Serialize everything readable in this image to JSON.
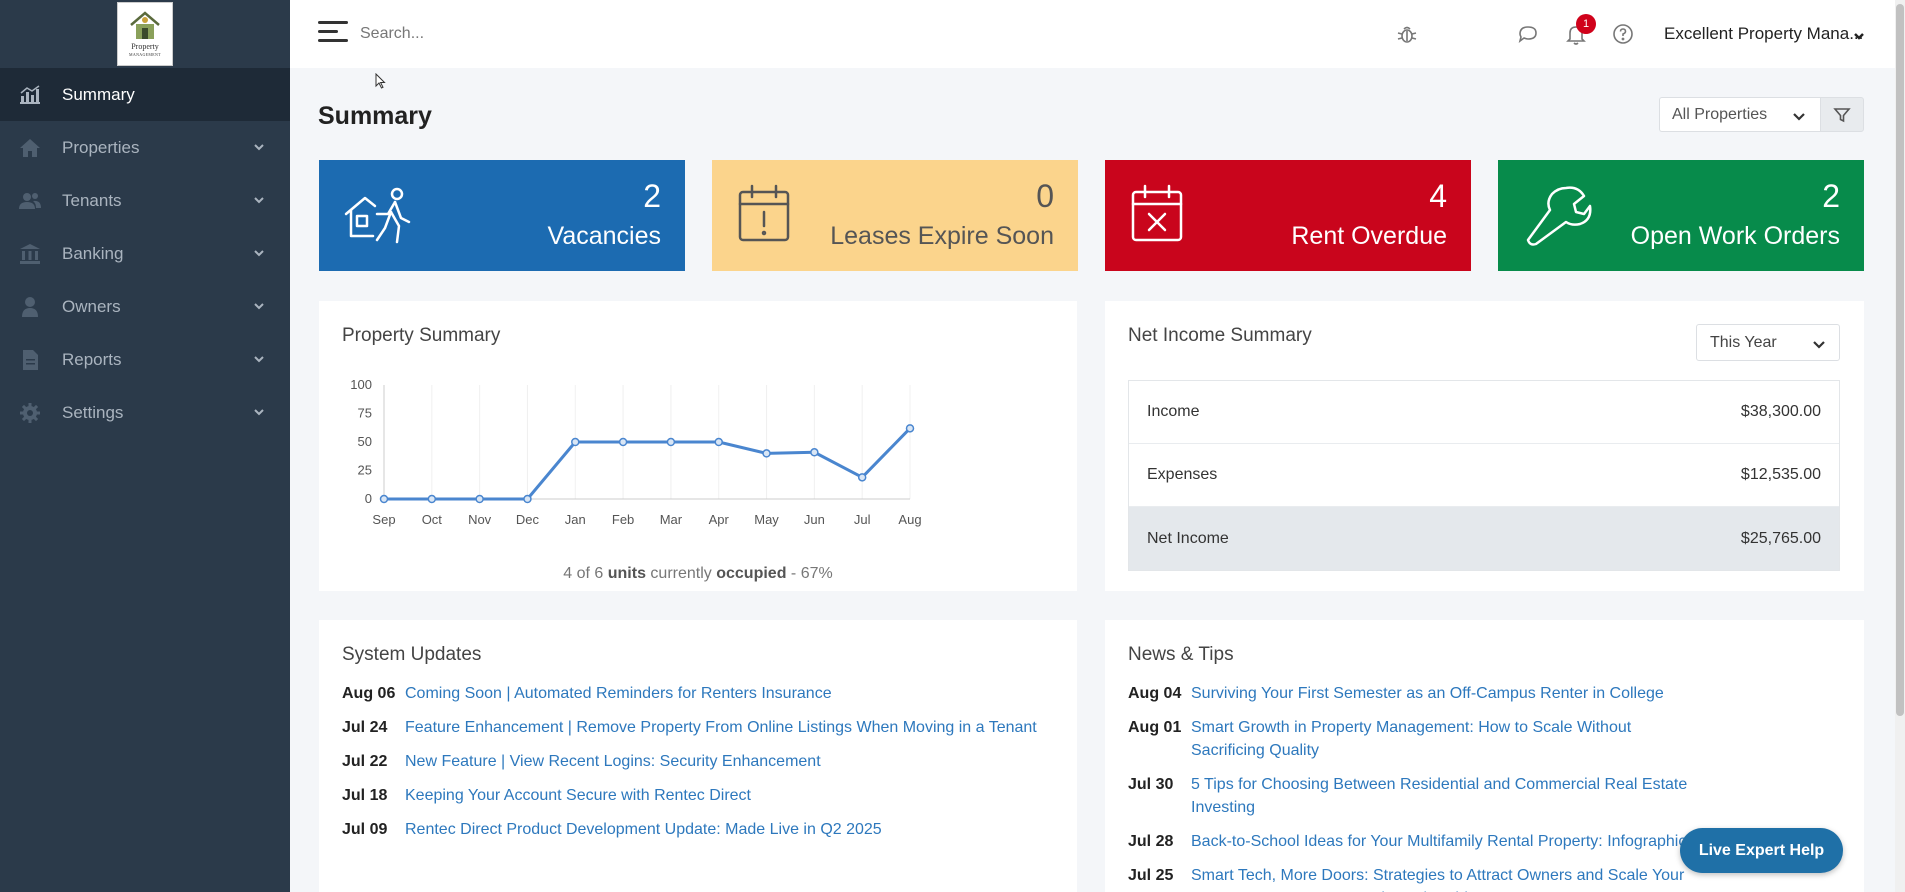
{
  "sidebar": {
    "logo": {
      "line1": "Property",
      "line2": "MANAGEMENT"
    },
    "items": [
      {
        "label": "Summary",
        "icon": "chart-icon",
        "active": true
      },
      {
        "label": "Properties",
        "icon": "home-icon"
      },
      {
        "label": "Tenants",
        "icon": "users-icon"
      },
      {
        "label": "Banking",
        "icon": "bank-icon"
      },
      {
        "label": "Owners",
        "icon": "user-icon"
      },
      {
        "label": "Reports",
        "icon": "file-icon"
      },
      {
        "label": "Settings",
        "icon": "gear-icon"
      }
    ]
  },
  "header": {
    "search_placeholder": "Search...",
    "notification_count": "1",
    "company": "Excellent Property Mana..."
  },
  "main": {
    "title": "Summary",
    "property_filter": "All Properties"
  },
  "stats": [
    {
      "value": "2",
      "label": "Vacancies",
      "color": "#1c6bb1",
      "icon": "vacancy-icon"
    },
    {
      "value": "0",
      "label": "Leases Expire Soon",
      "color": "#fbd48c",
      "icon": "calendar-alert-icon"
    },
    {
      "value": "4",
      "label": "Rent Overdue",
      "color": "#c9051c",
      "icon": "calendar-x-icon"
    },
    {
      "value": "2",
      "label": "Open Work Orders",
      "color": "#078b4b",
      "icon": "wrench-icon"
    }
  ],
  "property_summary": {
    "title": "Property Summary",
    "caption": {
      "count": "4 of 6",
      "units": "units",
      "mid": "currently",
      "occupied": "occupied",
      "pct": "- 67%"
    }
  },
  "chart_data": {
    "type": "line",
    "categories": [
      "Sep",
      "Oct",
      "Nov",
      "Dec",
      "Jan",
      "Feb",
      "Mar",
      "Apr",
      "May",
      "Jun",
      "Jul",
      "Aug"
    ],
    "values": [
      0,
      0,
      0,
      0,
      50,
      50,
      50,
      50,
      40,
      41,
      19,
      62
    ],
    "yticks": [
      "100",
      "75",
      "50",
      "25",
      "0"
    ],
    "ylim": [
      0,
      100
    ],
    "color": "#4a86cf"
  },
  "net_income": {
    "title": "Net Income Summary",
    "range": "This Year",
    "rows": [
      {
        "label": "Income",
        "value": "$38,300.00"
      },
      {
        "label": "Expenses",
        "value": "$12,535.00"
      },
      {
        "label": "Net Income",
        "value": "$25,765.00"
      }
    ]
  },
  "system_updates": {
    "title": "System Updates",
    "items": [
      {
        "date": "Aug 06",
        "text": "Coming Soon | Automated Reminders for Renters Insurance"
      },
      {
        "date": "Jul 24",
        "text": "Feature Enhancement | Remove Property From Online Listings When Moving in a Tenant"
      },
      {
        "date": "Jul 22",
        "text": "New Feature | View Recent Logins: Security Enhancement"
      },
      {
        "date": "Jul 18",
        "text": "Keeping Your Account Secure with Rentec Direct"
      },
      {
        "date": "Jul 09",
        "text": "Rentec Direct Product Development Update: Made Live in Q2 2025"
      }
    ]
  },
  "news": {
    "title": "News & Tips",
    "items": [
      {
        "date": "Aug 04",
        "text": "Surviving Your First Semester as an Off-Campus Renter in College"
      },
      {
        "date": "Aug 01",
        "text": "Smart Growth in Property Management: How to Scale Without Sacrificing Quality"
      },
      {
        "date": "Jul 30",
        "text": "5 Tips for Choosing Between Residential and Commercial Real Estate Investing"
      },
      {
        "date": "Jul 28",
        "text": "Back-to-School Ideas for Your Multifamily Rental Property: Infographic"
      },
      {
        "date": "Jul 25",
        "text": "Smart Tech, More Doors: Strategies to Attract Owners and Scale Your Property Management Business | Webinar Recap"
      }
    ]
  },
  "live_help": "Live Expert Help"
}
